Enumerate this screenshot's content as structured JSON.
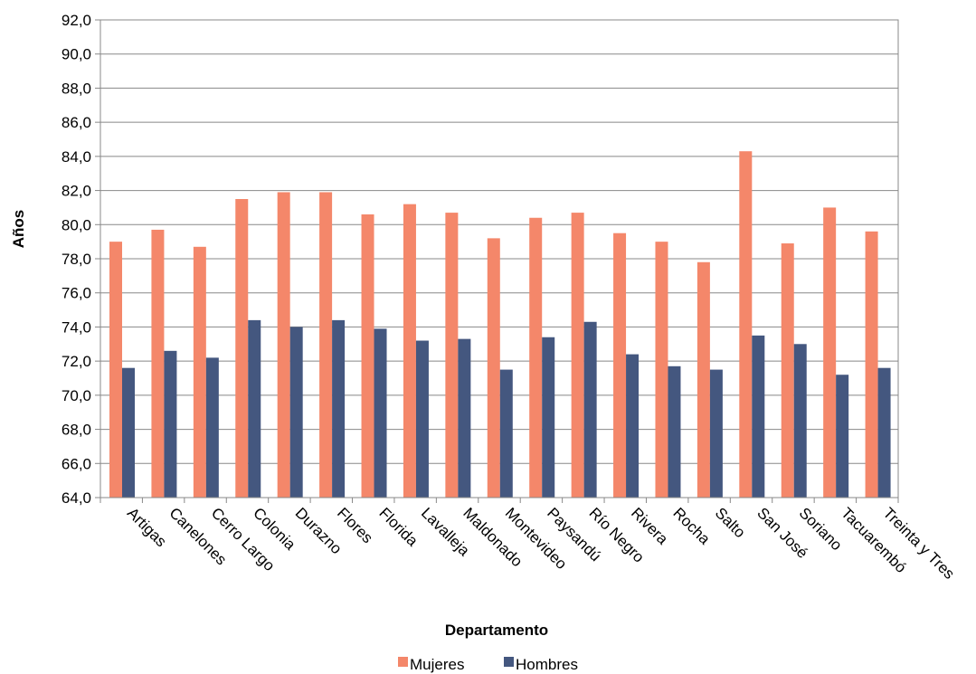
{
  "chart_data": {
    "type": "bar",
    "title": "",
    "xlabel": "Departamento",
    "ylabel": "Años",
    "ylim": [
      64,
      92
    ],
    "ytick_step": 2,
    "ytick_labels": [
      "64,0",
      "66,0",
      "68,0",
      "70,0",
      "72,0",
      "74,0",
      "76,0",
      "78,0",
      "80,0",
      "82,0",
      "84,0",
      "86,0",
      "88,0",
      "90,0",
      "92,0"
    ],
    "grid": true,
    "legend_position": "bottom",
    "categories": [
      "Artigas",
      "Canelones",
      "Cerro Largo",
      "Colonia",
      "Durazno",
      "Flores",
      "Florida",
      "Lavalleja",
      "Maldonado",
      "Montevideo",
      "Paysandú",
      "Río Negro",
      "Rivera",
      "Rocha",
      "Salto",
      "San José",
      "Soriano",
      "Tacuarembó",
      "Treinta y Tres"
    ],
    "series": [
      {
        "name": "Mujeres",
        "color": "#F4876A",
        "values": [
          79.0,
          79.7,
          78.7,
          81.5,
          81.9,
          81.9,
          80.6,
          81.2,
          80.7,
          79.2,
          80.4,
          80.7,
          79.5,
          79.0,
          77.8,
          84.3,
          78.9,
          81.0,
          79.6
        ]
      },
      {
        "name": "Hombres",
        "color": "#44577F",
        "values": [
          71.6,
          72.6,
          72.2,
          74.4,
          74.0,
          74.4,
          73.9,
          73.2,
          73.3,
          71.5,
          73.4,
          74.3,
          72.4,
          71.7,
          71.5,
          73.5,
          73.0,
          71.2,
          71.6
        ]
      }
    ]
  }
}
